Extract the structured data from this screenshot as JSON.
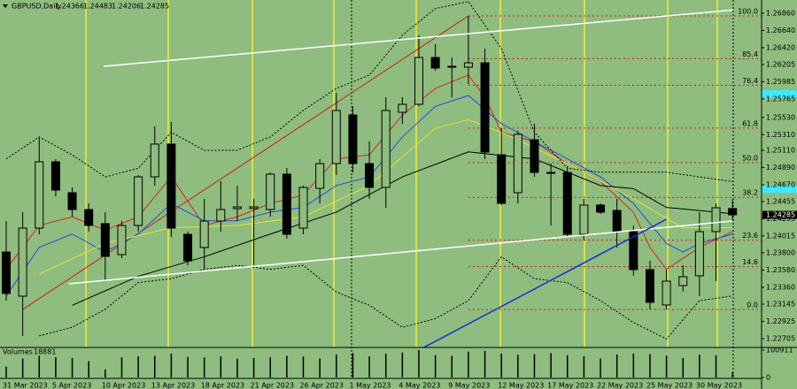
{
  "chart_data": {
    "type": "candlestick",
    "symbol": "GBPUSD,Daily",
    "categories": [
      "31 Mar 2023",
      null,
      null,
      "5 Apr 2023",
      null,
      null,
      "10 Apr 2023",
      null,
      null,
      "13 Apr 2023",
      null,
      null,
      "18 Apr 2023",
      null,
      null,
      "21 Apr 2023",
      null,
      null,
      "26 Apr 2023",
      null,
      null,
      "1 May 2023",
      null,
      null,
      "4 May 2023",
      null,
      null,
      "9 May 2023",
      null,
      null,
      "12 May 2023",
      null,
      null,
      "17 May 2023",
      null,
      null,
      "22 May 2023",
      null,
      null,
      "25 May 2023",
      null,
      null,
      "30 May 2023",
      null,
      null
    ],
    "open": [
      1.23811,
      1.23247,
      1.24116,
      1.24963,
      1.24568,
      1.24353,
      1.24173,
      1.23777,
      1.2415,
      1.24771,
      1.25189,
      1.24037,
      1.23868,
      1.24206,
      1.24365,
      1.24365,
      1.24353,
      1.24805,
      1.24116,
      1.24624,
      1.2494,
      1.25561,
      1.2494,
      1.24636,
      1.25595,
      1.25697,
      1.26295,
      1.26182,
      1.26171,
      1.26227,
      1.25053,
      1.24568,
      1.25245,
      1.24816,
      1.24827,
      1.24037,
      1.2441,
      1.24342,
      1.24071,
      1.23586,
      1.23134,
      1.23382,
      1.23507,
      1.24071,
      1.24366
    ],
    "high": [
      1.24206,
      1.24319,
      1.25279,
      1.24997,
      1.24636,
      1.24432,
      1.24319,
      1.24206,
      1.24794,
      1.25415,
      1.25471,
      1.24071,
      1.24489,
      1.24715,
      1.24658,
      1.24489,
      1.24827,
      1.24884,
      1.24658,
      1.24997,
      1.25844,
      1.25674,
      1.25223,
      1.25787,
      1.25787,
      1.26577,
      1.26464,
      1.26295,
      1.26826,
      1.26408,
      1.25392,
      1.25358,
      1.25448,
      1.2494,
      1.24906,
      1.24489,
      1.24432,
      1.24489,
      1.2415,
      1.23698,
      1.23586,
      1.23642,
      1.24319,
      1.24432,
      1.24483
    ],
    "low": [
      1.2319,
      1.22739,
      1.24037,
      1.24523,
      1.24263,
      1.24071,
      1.23439,
      1.23732,
      1.24071,
      1.24658,
      1.24003,
      1.23642,
      1.23586,
      1.24071,
      1.24206,
      1.23642,
      1.24263,
      1.23981,
      1.24037,
      1.24432,
      1.24794,
      1.24827,
      1.24489,
      1.24376,
      1.25448,
      1.25674,
      1.26126,
      1.25787,
      1.25956,
      1.24997,
      1.2441,
      1.24432,
      1.24771,
      1.2415,
      1.24003,
      1.23958,
      1.24297,
      1.23868,
      1.23507,
      1.23077,
      1.23077,
      1.23303,
      1.23247,
      1.23439,
      1.24206
    ],
    "close": [
      1.23281,
      1.24116,
      1.24963,
      1.24602,
      1.24353,
      1.2415,
      1.23755,
      1.2415,
      1.24771,
      1.25189,
      1.24116,
      1.23698,
      1.24206,
      1.24353,
      1.24387,
      1.24387,
      1.24805,
      1.24037,
      1.24636,
      1.2494,
      1.25618,
      1.2494,
      1.24636,
      1.25618,
      1.25697,
      1.26295,
      1.2616,
      1.26171,
      1.26227,
      1.25087,
      1.24432,
      1.25313,
      1.24827,
      1.24827,
      1.24037,
      1.2441,
      1.24319,
      1.24071,
      1.23586,
      1.23168,
      1.23439,
      1.23495,
      1.24071,
      1.24376,
      1.24285
    ],
    "up_color": "#8fbc7f",
    "down_color": "#000000",
    "background": "#8fbc7f",
    "ylim": [
      1.22592,
      1.27029
    ],
    "yticks": [
      {
        "value": 1.2686,
        "label": "1.26860"
      },
      {
        "value": 1.2664,
        "label": "1.26640"
      },
      {
        "value": 1.2642,
        "label": "1.26420"
      },
      {
        "value": 1.26205,
        "label": "1.26205"
      },
      {
        "value": 1.25985,
        "label": "1.25985"
      },
      {
        "value": 1.25765,
        "label": "1.25765"
      },
      {
        "value": 1.2553,
        "label": "1.25530"
      },
      {
        "value": 1.2531,
        "label": "1.25310"
      },
      {
        "value": 1.2511,
        "label": "1.25110"
      },
      {
        "value": 1.2489,
        "label": "1.24890"
      },
      {
        "value": 1.2467,
        "label": "1.24670"
      },
      {
        "value": 1.24455,
        "label": "1.24455"
      },
      {
        "value": 1.24235,
        "label": "1.24235"
      },
      {
        "value": 1.24015,
        "label": "1.24015"
      },
      {
        "value": 1.238,
        "label": "1.23800"
      },
      {
        "value": 1.2358,
        "label": "1.23580"
      },
      {
        "value": 1.2336,
        "label": "1.23360"
      },
      {
        "value": 1.23145,
        "label": "1.23145"
      },
      {
        "value": 1.22925,
        "label": "1.22925"
      },
      {
        "value": 1.22705,
        "label": "1.22705"
      }
    ],
    "fibonacci": {
      "color": "#c8201a",
      "levels": [
        {
          "label": "100.0",
          "price": 1.26826
        },
        {
          "label": "85.4",
          "price": 1.26279
        },
        {
          "label": "76.4",
          "price": 1.25941
        },
        {
          "label": "61.8",
          "price": 1.25394
        },
        {
          "label": "50.0",
          "price": 1.24952
        },
        {
          "label": "38.2",
          "price": 1.24509
        },
        {
          "label": "23.6",
          "price": 1.23962
        },
        {
          "label": "14.6",
          "price": 1.23624
        },
        {
          "label": "0.0",
          "price": 1.23077
        }
      ]
    },
    "indicators": [
      {
        "color": "#d02818",
        "style": "solid",
        "x": [
          0,
          2,
          4,
          6,
          8,
          10,
          12,
          14,
          16,
          18,
          20,
          22,
          24,
          26,
          28,
          29,
          30,
          32,
          34,
          36,
          38,
          39,
          40,
          42,
          44
        ],
        "values": [
          1.2359,
          1.2415,
          1.2426,
          1.2409,
          1.2426,
          1.2477,
          1.2415,
          1.2426,
          1.2443,
          1.2454,
          1.25,
          1.2505,
          1.2556,
          1.259,
          1.2607,
          1.2579,
          1.2534,
          1.2522,
          1.2494,
          1.2471,
          1.2432,
          1.2387,
          1.2359,
          1.2387,
          1.2407
        ]
      },
      {
        "color": "#1f4fe0",
        "style": "solid",
        "x": [
          0,
          2,
          4,
          6,
          8,
          10,
          12,
          14,
          16,
          18,
          20,
          22,
          24,
          26,
          28,
          30,
          32,
          34,
          36,
          38,
          40,
          41,
          42,
          44
        ],
        "values": [
          1.2325,
          1.2387,
          1.2404,
          1.2381,
          1.2404,
          1.2443,
          1.2421,
          1.2421,
          1.2432,
          1.2438,
          1.2466,
          1.2477,
          1.2528,
          1.2567,
          1.2581,
          1.2545,
          1.2522,
          1.25,
          1.2477,
          1.2443,
          1.2392,
          1.2381,
          1.2392,
          1.2404
        ]
      },
      {
        "color": "#e8e23c",
        "style": "solid",
        "x": [
          2,
          6,
          10,
          14,
          18,
          22,
          26,
          28,
          30,
          34,
          38,
          41,
          44
        ],
        "values": [
          1.2353,
          1.2392,
          1.2412,
          1.2415,
          1.2426,
          1.2466,
          1.2539,
          1.255,
          1.2534,
          1.2494,
          1.2449,
          1.2412,
          1.2412
        ]
      },
      {
        "color": "#000000",
        "style": "solid",
        "x": [
          4,
          8,
          12,
          16,
          20,
          24,
          28,
          32,
          36,
          38,
          40,
          44
        ],
        "values": [
          1.2313,
          1.235,
          1.2375,
          1.2404,
          1.2432,
          1.2477,
          1.2509,
          1.25,
          1.2466,
          1.2462,
          1.2438,
          1.243
        ]
      },
      {
        "color": "#000000",
        "style": "dotted",
        "x": [
          0,
          2,
          4,
          6,
          8,
          10,
          12,
          14,
          16,
          18,
          20,
          22,
          24,
          26,
          28,
          30,
          32,
          34,
          36,
          40,
          44
        ],
        "values": [
          1.25,
          1.2528,
          1.2505,
          1.2477,
          1.2488,
          1.2534,
          1.2511,
          1.2511,
          1.2528,
          1.2562,
          1.259,
          1.2607,
          1.2658,
          1.2692,
          1.2701,
          1.2641,
          1.2534,
          1.2488,
          1.2483,
          1.2483,
          1.2471
        ]
      },
      {
        "color": "#000000",
        "style": "dotted",
        "x": [
          2,
          4,
          6,
          8,
          10,
          12,
          14,
          16,
          18,
          20,
          22,
          24,
          26,
          28,
          30,
          32,
          34,
          36,
          38,
          40,
          42,
          44
        ],
        "values": [
          1.2274,
          1.2285,
          1.2308,
          1.2342,
          1.2347,
          1.2359,
          1.2364,
          1.2359,
          1.2364,
          1.233,
          1.2313,
          1.2285,
          1.2296,
          1.2319,
          1.2375,
          1.2347,
          1.2342,
          1.2319,
          1.2291,
          1.227,
          1.2319,
          1.2325
        ]
      }
    ],
    "lines": [
      {
        "color": "#ffffff",
        "x": [
          5.9,
          44
        ],
        "values": [
          1.26182,
          1.269
        ]
      },
      {
        "color": "#ffffff",
        "x": [
          3.8,
          44
        ],
        "values": [
          1.23405,
          1.24206
        ]
      },
      {
        "color": "#1030d0",
        "x": [
          25.3,
          40
        ],
        "values": [
          1.22592,
          1.24229
        ]
      }
    ],
    "volume_label": "Volumes",
    "volumes": [
      40000,
      70000,
      80000,
      75000,
      72000,
      60000,
      30000,
      75000,
      78000,
      80000,
      88000,
      76000,
      74000,
      78000,
      70000,
      72000,
      75000,
      80000,
      77000,
      70000,
      85000,
      90000,
      78000,
      88000,
      92000,
      100911,
      82000,
      80000,
      95000,
      98000,
      88000,
      84000,
      86000,
      90000,
      82000,
      78000,
      70000,
      85000,
      88000,
      86000,
      80000,
      72000,
      84000,
      82000,
      18881
    ],
    "volume_ylim": [
      0,
      100911
    ],
    "volume_yticks": [
      100911,
      0
    ]
  }
}
